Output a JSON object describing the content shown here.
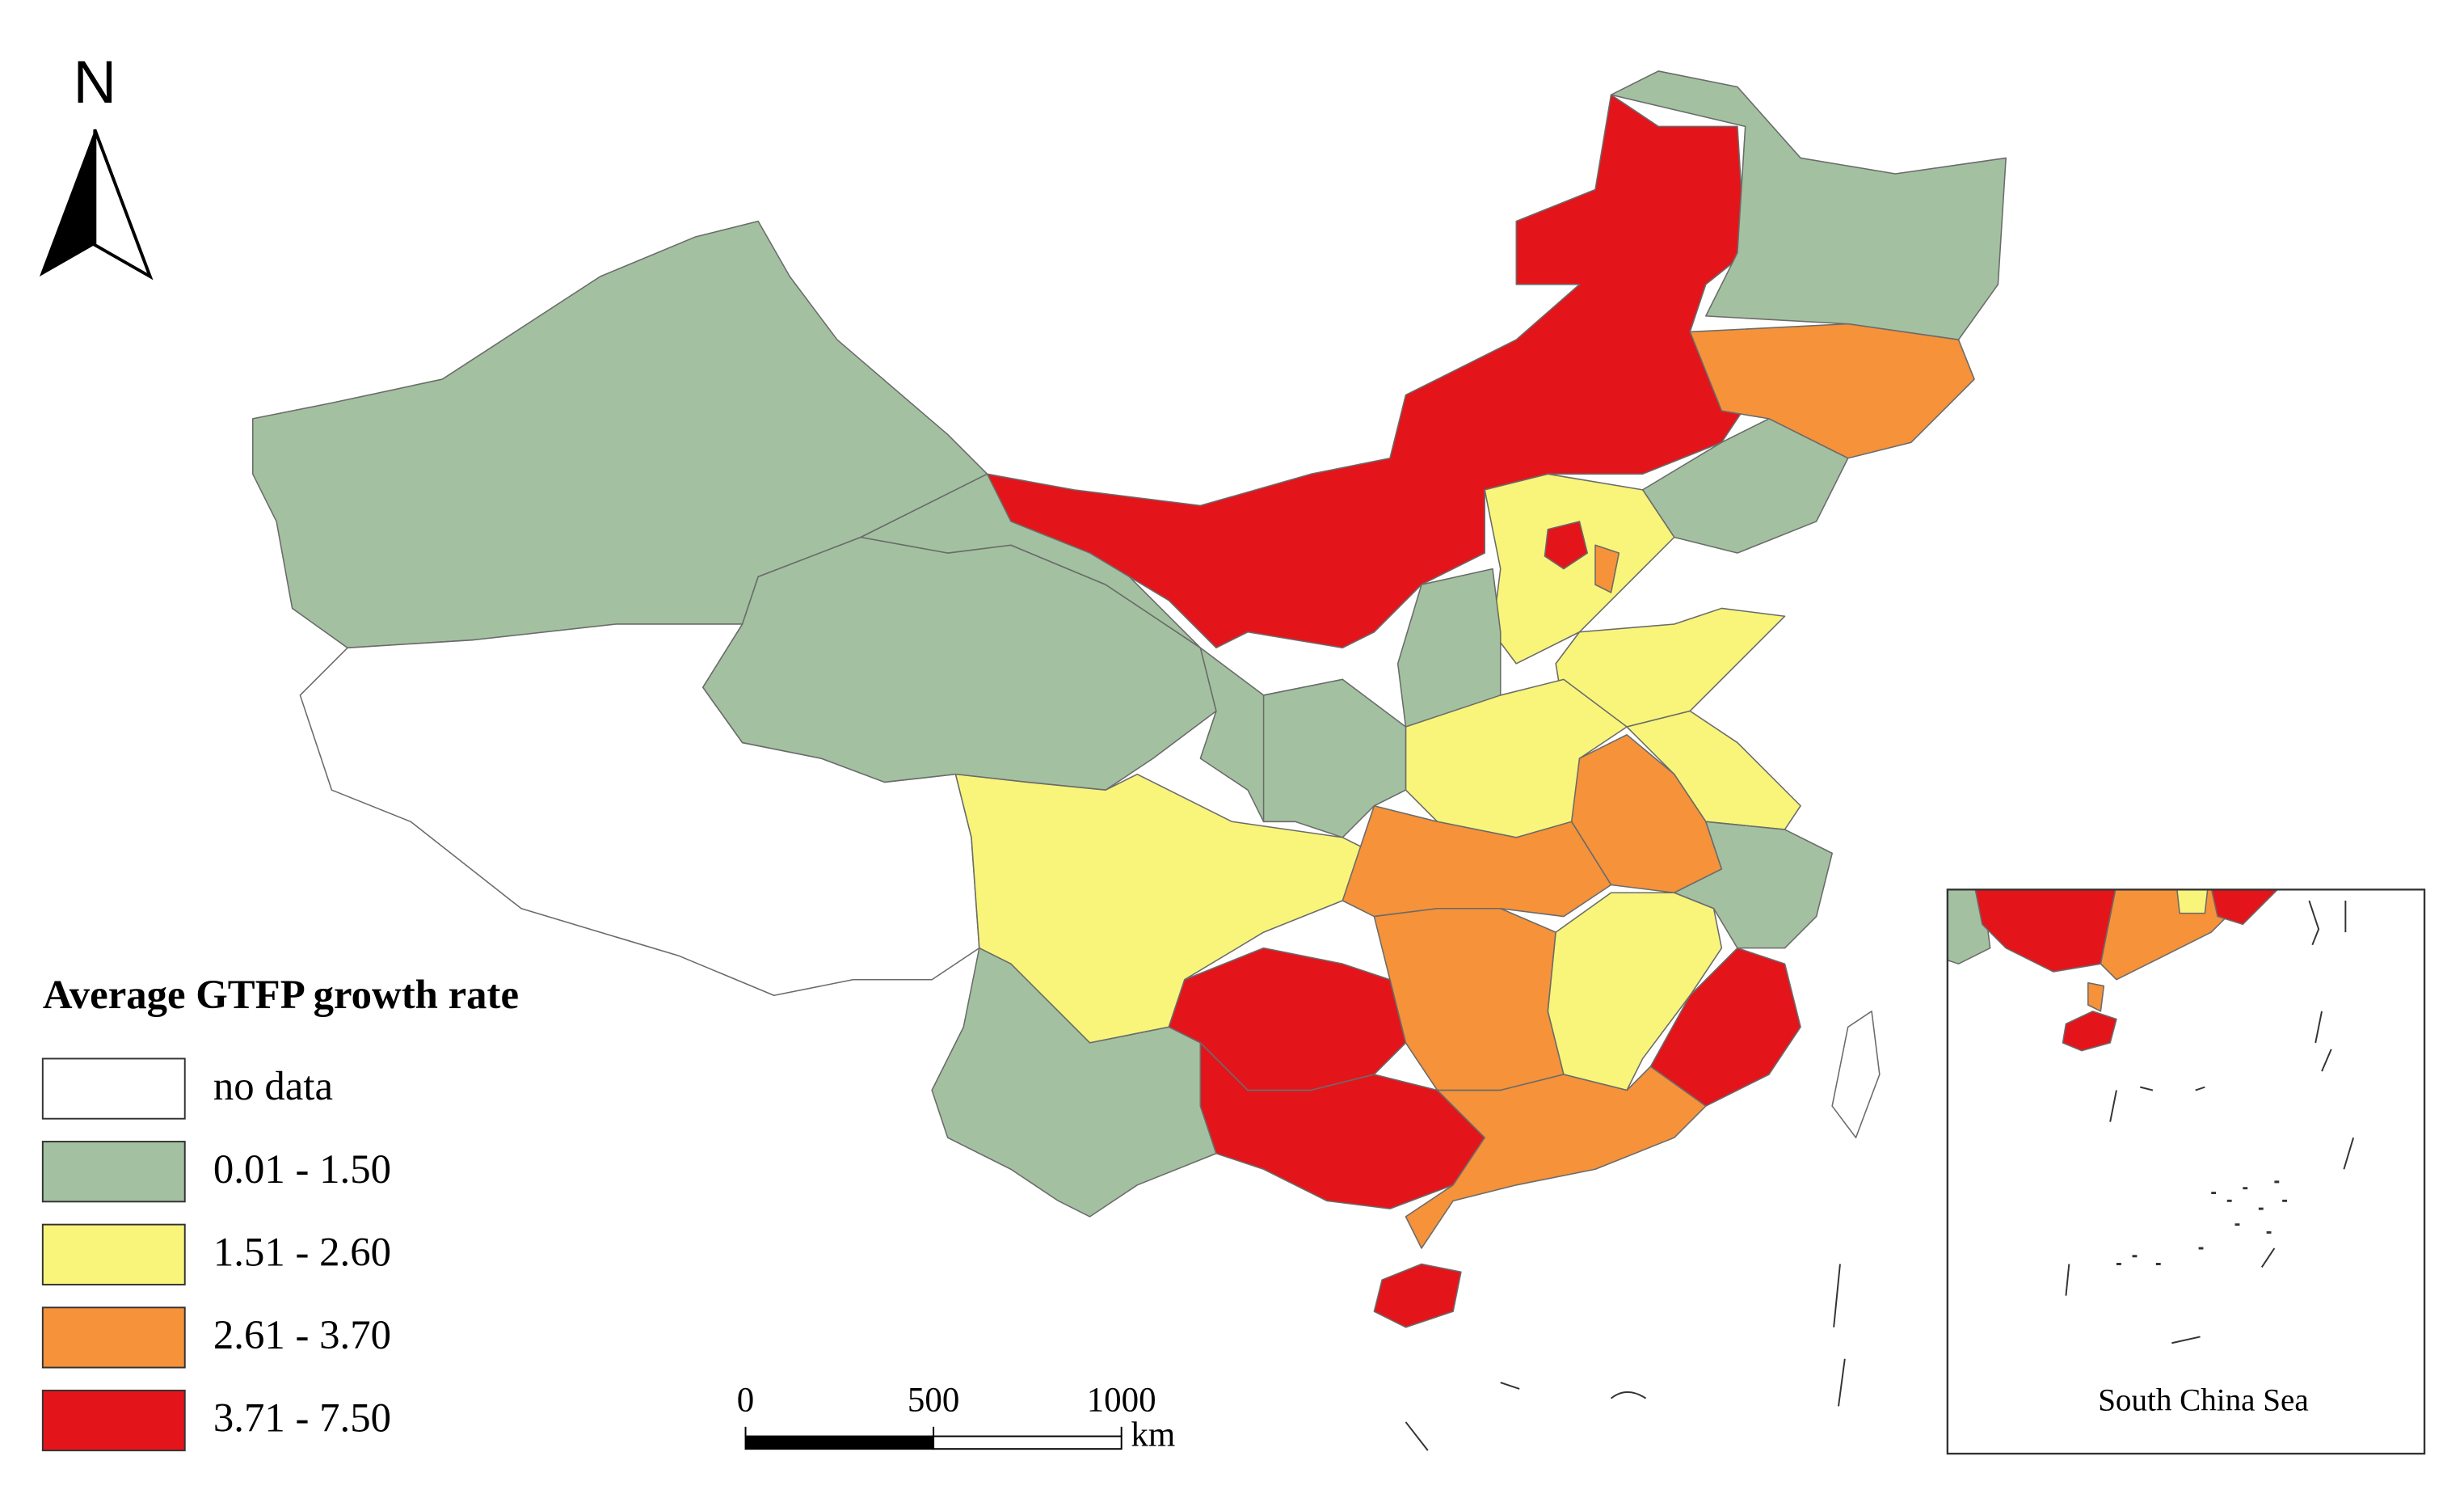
{
  "north": "N",
  "legend": {
    "title": "Average GTFP growth rate",
    "items": [
      {
        "label": "no data",
        "color": "#ffffff"
      },
      {
        "label": "0.01 - 1.50",
        "color": "#a3c1a0"
      },
      {
        "label": "1.51 - 2.60",
        "color": "#f8f57a"
      },
      {
        "label": "2.61 - 3.70",
        "color": "#f5923a"
      },
      {
        "label": "3.71 - 7.50",
        "color": "#e3151b"
      }
    ]
  },
  "scale_bar": {
    "ticks": [
      0,
      500,
      1000
    ],
    "unit": "km"
  },
  "inset": {
    "label": "South China Sea"
  }
}
